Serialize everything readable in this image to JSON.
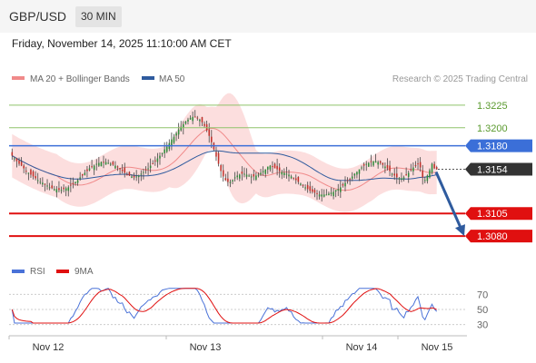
{
  "header": {
    "symbol": "GBP/USD",
    "timeframe": "30 MIN",
    "datetime": "Friday, November 14, 2025 11:10:00 AM CET"
  },
  "legend": {
    "ma20_bb": "MA 20 + Bollinger Bands",
    "ma50": "MA 50",
    "credit": "Research © 2025 Trading Central"
  },
  "colors": {
    "candle_up": "#2e8b3a",
    "candle_down": "#c0302a",
    "band_fill": "#fbd6d6",
    "ma20": "#f08a8a",
    "ma50": "#2f5b9e",
    "resistance": "#8fc36a",
    "pivot": "#3b6fd8",
    "support": "#e01010",
    "last_price": "#333333",
    "arrow": "#2f5b9e",
    "rsi": "#4a72d8",
    "rsi_ma": "#e01010"
  },
  "chart_data": [
    {
      "type": "candlestick",
      "ylim": [
        1.306,
        1.3245
      ],
      "x_ticks": [
        "Nov 12",
        "Nov 13",
        "Nov 14",
        "Nov 15"
      ],
      "levels": [
        {
          "value": 1.3225,
          "label": "1.3225",
          "kind": "resistance"
        },
        {
          "value": 1.32,
          "label": "1.3200",
          "kind": "resistance"
        },
        {
          "value": 1.318,
          "label": "1.3180",
          "kind": "pivot"
        },
        {
          "value": 1.3105,
          "label": "1.3105",
          "kind": "support"
        },
        {
          "value": 1.308,
          "label": "1.3080",
          "kind": "support"
        }
      ],
      "last_price": {
        "value": 1.3154,
        "label": "1.3154"
      },
      "forecast_arrow": {
        "from": 1.3151,
        "to": 1.308
      },
      "close": [
        1.3169,
        1.3166,
        1.3163,
        1.316,
        1.3158,
        1.3155,
        1.3152,
        1.315,
        1.3148,
        1.3146,
        1.3144,
        1.3142,
        1.314,
        1.3139,
        1.3137,
        1.3136,
        1.3134,
        1.3133,
        1.3132,
        1.3132,
        1.3131,
        1.3131,
        1.3132,
        1.3133,
        1.3134,
        1.3136,
        1.3138,
        1.314,
        1.3142,
        1.3145,
        1.3147,
        1.315,
        1.3152,
        1.3155,
        1.3157,
        1.3158,
        1.316,
        1.3161,
        1.3162,
        1.3162,
        1.3162,
        1.3161,
        1.316,
        1.3159,
        1.3158,
        1.3156,
        1.3154,
        1.3152,
        1.315,
        1.3148,
        1.3147,
        1.3146,
        1.3145,
        1.3146,
        1.3147,
        1.3149,
        1.3151,
        1.3153,
        1.3155,
        1.3158,
        1.316,
        1.3163,
        1.3166,
        1.3169,
        1.3172,
        1.3176,
        1.3179,
        1.3183,
        1.3187,
        1.319,
        1.3194,
        1.3198,
        1.3201,
        1.3204,
        1.3207,
        1.3209,
        1.3211,
        1.3212,
        1.3212,
        1.3211,
        1.3209,
        1.3206,
        1.3202,
        1.3197,
        1.3191,
        1.3184,
        1.3176,
        1.3168,
        1.316,
        1.3152,
        1.3146,
        1.3142,
        1.314,
        1.314,
        1.3142,
        1.3145,
        1.3147,
        1.3148,
        1.3149,
        1.3149,
        1.3148,
        1.3147,
        1.3146,
        1.3146,
        1.3147,
        1.3148,
        1.315,
        1.3152,
        1.3154,
        1.3157,
        1.3158,
        1.3157,
        1.3155,
        1.3154,
        1.3152,
        1.3151,
        1.315,
        1.3149,
        1.3148,
        1.3146,
        1.3144,
        1.3142,
        1.314,
        1.3138,
        1.3136,
        1.3134,
        1.3132,
        1.313,
        1.3129,
        1.3128,
        1.3127,
        1.3126,
        1.3126,
        1.3126,
        1.3126,
        1.3127,
        1.3128,
        1.3129,
        1.3131,
        1.3132,
        1.3134,
        1.3136,
        1.3139,
        1.3141,
        1.3143,
        1.3146,
        1.3149,
        1.3151,
        1.3154,
        1.3156,
        1.3158,
        1.316,
        1.3161,
        1.3162,
        1.3163,
        1.3163,
        1.3162,
        1.3161,
        1.3159,
        1.3157,
        1.3155,
        1.3152,
        1.3149,
        1.3147,
        1.3145,
        1.3144,
        1.3144,
        1.3145,
        1.3147,
        1.315,
        1.3153,
        1.3156,
        1.3158,
        1.316,
        1.3156,
        1.3145,
        1.3142,
        1.3147,
        1.3153,
        1.316,
        1.3155,
        1.3154
      ],
      "candles_note": "simplified 30-minute OHLC series",
      "rsi": {
        "labels": [
          "RSI",
          "9MA"
        ],
        "ylim": [
          20,
          80
        ],
        "ticks": [
          70,
          50,
          30
        ]
      }
    }
  ]
}
